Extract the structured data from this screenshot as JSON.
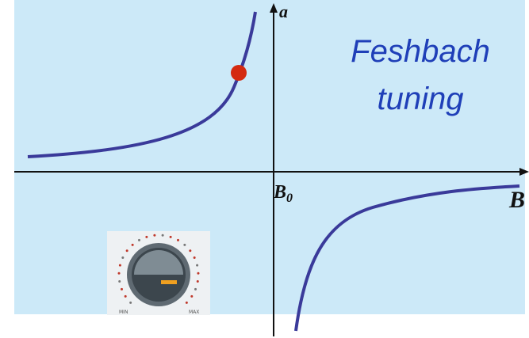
{
  "axes": {
    "y_label": "a",
    "x_origin_label": "B",
    "x_origin_subscript": "0",
    "x_label": "B"
  },
  "title": {
    "line1": "Feshbach",
    "line2": "tuning"
  },
  "knob": {
    "min_label": "MIN",
    "max_label": "MAX"
  }
}
